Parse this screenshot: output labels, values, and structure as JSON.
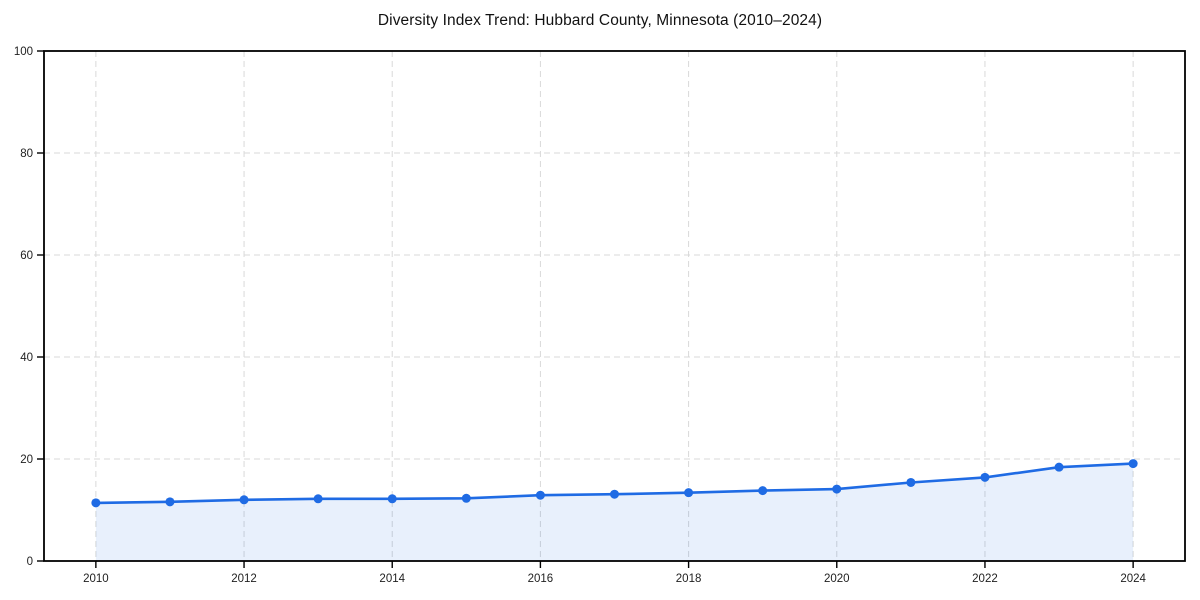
{
  "chart_data": {
    "type": "line",
    "title": "Diversity Index Trend: Hubbard County, Minnesota (2010–2024)",
    "xlabel": "",
    "ylabel": "",
    "x": [
      2010,
      2011,
      2012,
      2013,
      2014,
      2015,
      2016,
      2017,
      2018,
      2019,
      2020,
      2021,
      2022,
      2023,
      2024
    ],
    "series": [
      {
        "name": "Diversity Index",
        "values": [
          11.4,
          11.6,
          12.0,
          12.2,
          12.2,
          12.3,
          12.9,
          13.1,
          13.4,
          13.8,
          14.1,
          15.4,
          16.4,
          18.4,
          19.1
        ]
      }
    ],
    "xlim": [
      2009.3,
      2024.7
    ],
    "ylim": [
      0,
      100
    ],
    "xticks": [
      2010,
      2012,
      2014,
      2016,
      2018,
      2020,
      2022,
      2024
    ],
    "yticks": [
      0,
      20,
      40,
      60,
      80,
      100
    ],
    "grid": true,
    "grid_style": "dashed",
    "legend": "none",
    "area_fill": true,
    "colors": {
      "line": "#1f6be4",
      "marker": "#1f6be4",
      "area": "rgba(31,107,228,0.10)",
      "gridline": "#d9d9d9",
      "axis": "#000000",
      "tick_text": "#1f1f1f",
      "background": "#ffffff"
    }
  }
}
